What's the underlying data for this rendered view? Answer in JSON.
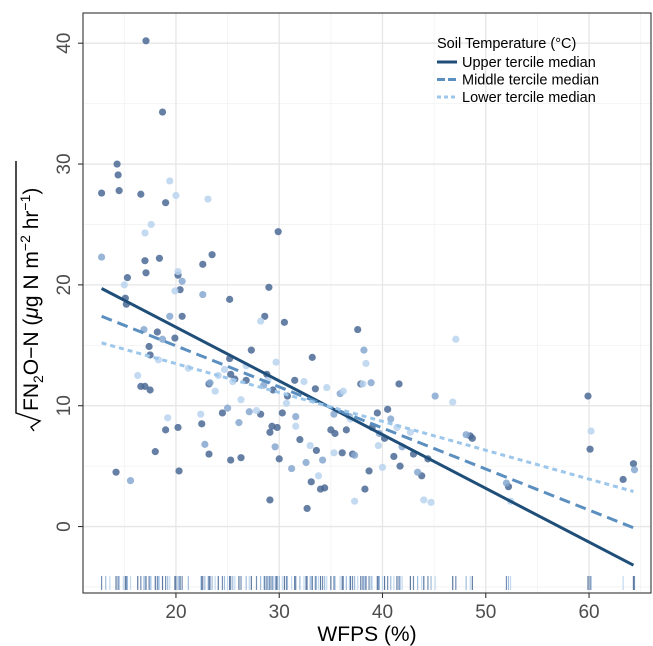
{
  "chart_data": {
    "type": "scatter",
    "xlabel": "WFPS (%)",
    "ylabel_parts": {
      "base": "FN",
      "sub": "2",
      "mid": "O−N (",
      "mu": "μ",
      "unit_a": "g N m",
      "sup_a": "−2",
      "unit_b": " hr",
      "sup_b": "−1",
      "close": ")"
    },
    "xlim": [
      11,
      66
    ],
    "ylim": [
      -5.5,
      42.5
    ],
    "x_ticks": [
      20,
      30,
      40,
      50,
      60
    ],
    "y_ticks": [
      0,
      10,
      20,
      30,
      40
    ],
    "grid": true,
    "legend": {
      "title": "Soil Temperature (°C)",
      "placement": "top-right",
      "entries": [
        {
          "label": "Upper tercile median",
          "color": "#1f4e79",
          "dash": "solid"
        },
        {
          "label": "Middle tercile median",
          "color": "#5b8fc0",
          "dash": "dashed"
        },
        {
          "label": "Lower tercile median",
          "color": "#9cc6ea",
          "dash": "dotted"
        }
      ]
    },
    "lines": [
      {
        "name": "Upper tercile median",
        "x": [
          12.8,
          64.3
        ],
        "y": [
          19.7,
          -3.2
        ]
      },
      {
        "name": "Middle tercile median",
        "x": [
          12.8,
          64.3
        ],
        "y": [
          17.4,
          -0.1
        ]
      },
      {
        "name": "Lower tercile median",
        "x": [
          12.8,
          64.3
        ],
        "y": [
          15.2,
          2.9
        ]
      }
    ],
    "series": [
      {
        "group": "upper",
        "color": "#4b6a95",
        "points": [
          [
            17.1,
            40.2
          ],
          [
            18.7,
            34.3
          ],
          [
            14.3,
            30.0
          ],
          [
            14.4,
            29.1
          ],
          [
            14.5,
            27.8
          ],
          [
            12.8,
            27.6
          ],
          [
            16.6,
            27.5
          ],
          [
            19.0,
            26.8
          ],
          [
            29.9,
            24.4
          ],
          [
            15.3,
            20.6
          ],
          [
            17.0,
            22.0
          ],
          [
            17.1,
            21.0
          ],
          [
            18.4,
            22.2
          ],
          [
            20.2,
            20.8
          ],
          [
            23.5,
            22.5
          ],
          [
            22.6,
            21.7
          ],
          [
            20.6,
            17.4
          ],
          [
            20.4,
            19.6
          ],
          [
            18.2,
            16.1
          ],
          [
            17.4,
            14.9
          ],
          [
            17.5,
            14.2
          ],
          [
            17.0,
            11.6
          ],
          [
            16.6,
            11.6
          ],
          [
            17.5,
            11.3
          ],
          [
            18.0,
            6.2
          ],
          [
            19.0,
            8.0
          ],
          [
            20.2,
            8.2
          ],
          [
            19.9,
            15.6
          ],
          [
            15.1,
            18.9
          ],
          [
            15.2,
            18.4
          ],
          [
            14.2,
            4.5
          ],
          [
            20.3,
            4.6
          ],
          [
            22.5,
            8.5
          ],
          [
            23.2,
            11.8
          ],
          [
            24.5,
            9.4
          ],
          [
            25.2,
            13.9
          ],
          [
            25.3,
            12.6
          ],
          [
            25.7,
            12.2
          ],
          [
            25.3,
            5.5
          ],
          [
            23.2,
            6.0
          ],
          [
            26.3,
            5.7
          ],
          [
            26.8,
            12.1
          ],
          [
            27.3,
            14.6
          ],
          [
            28.2,
            9.3
          ],
          [
            28.8,
            12.6
          ],
          [
            29.0,
            19.8
          ],
          [
            29.1,
            7.8
          ],
          [
            29.3,
            8.3
          ],
          [
            29.4,
            11.3
          ],
          [
            29.8,
            8.2
          ],
          [
            30.0,
            5.6
          ],
          [
            30.3,
            9.4
          ],
          [
            30.8,
            10.8
          ],
          [
            31.5,
            12.1
          ],
          [
            32.0,
            7.2
          ],
          [
            32.7,
            1.5
          ],
          [
            33.1,
            3.7
          ],
          [
            33.2,
            14.0
          ],
          [
            33.5,
            11.4
          ],
          [
            33.6,
            6.3
          ],
          [
            34.0,
            3.1
          ],
          [
            35.0,
            8.0
          ],
          [
            35.4,
            7.7
          ],
          [
            36.1,
            6.1
          ],
          [
            36.5,
            8.0
          ],
          [
            37.6,
            16.3
          ],
          [
            37.9,
            11.8
          ],
          [
            38.3,
            3.1
          ],
          [
            38.7,
            4.6
          ],
          [
            39.0,
            8.2
          ],
          [
            39.5,
            9.4
          ],
          [
            40.2,
            7.3
          ],
          [
            40.5,
            9.7
          ],
          [
            41.1,
            5.8
          ],
          [
            41.6,
            11.8
          ],
          [
            41.7,
            5.0
          ],
          [
            43.0,
            6.0
          ],
          [
            43.8,
            4.2
          ],
          [
            44.4,
            5.6
          ],
          [
            48.5,
            7.5
          ],
          [
            48.7,
            7.3
          ],
          [
            52.2,
            3.3
          ],
          [
            59.9,
            10.8
          ],
          [
            60.1,
            6.4
          ],
          [
            63.3,
            3.9
          ],
          [
            64.3,
            5.2
          ],
          [
            29.1,
            2.2
          ],
          [
            34.4,
            3.2
          ],
          [
            37.1,
            6.0
          ],
          [
            25.2,
            18.8
          ],
          [
            28.6,
            17.4
          ],
          [
            30.5,
            16.9
          ]
        ]
      },
      {
        "group": "middle",
        "color": "#86a7cf",
        "points": [
          [
            12.8,
            22.3
          ],
          [
            15.6,
            3.8
          ],
          [
            16.9,
            16.3
          ],
          [
            18.7,
            15.5
          ],
          [
            19.4,
            17.4
          ],
          [
            20.6,
            20.3
          ],
          [
            22.8,
            6.8
          ],
          [
            22.6,
            19.2
          ],
          [
            23.3,
            11.9
          ],
          [
            25.0,
            9.8
          ],
          [
            26.1,
            8.6
          ],
          [
            27.1,
            9.5
          ],
          [
            28.5,
            11.7
          ],
          [
            29.6,
            6.6
          ],
          [
            31.2,
            4.8
          ],
          [
            31.6,
            9.1
          ],
          [
            32.6,
            5.3
          ],
          [
            34.2,
            5.5
          ],
          [
            35.3,
            9.3
          ],
          [
            35.9,
            11.0
          ],
          [
            36.8,
            9.1
          ],
          [
            37.3,
            5.9
          ],
          [
            38.2,
            14.6
          ],
          [
            38.9,
            11.9
          ],
          [
            39.7,
            7.7
          ],
          [
            40.8,
            8.9
          ],
          [
            41.9,
            6.6
          ],
          [
            43.4,
            4.5
          ],
          [
            45.1,
            10.8
          ],
          [
            48.1,
            7.6
          ],
          [
            52.0,
            3.6
          ],
          [
            64.4,
            4.7
          ]
        ]
      },
      {
        "group": "lower",
        "color": "#b9d4ef",
        "points": [
          [
            15.0,
            20.0
          ],
          [
            17.0,
            24.3
          ],
          [
            17.6,
            25.0
          ],
          [
            19.4,
            28.6
          ],
          [
            20.0,
            27.4
          ],
          [
            20.2,
            21.1
          ],
          [
            23.1,
            27.1
          ],
          [
            19.9,
            19.5
          ],
          [
            21.2,
            13.1
          ],
          [
            16.3,
            12.5
          ],
          [
            19.2,
            9.0
          ],
          [
            22.4,
            9.3
          ],
          [
            23.8,
            11.2
          ],
          [
            24.7,
            13.0
          ],
          [
            25.5,
            12.0
          ],
          [
            26.3,
            10.5
          ],
          [
            27.8,
            9.6
          ],
          [
            28.2,
            17.0
          ],
          [
            28.9,
            12.1
          ],
          [
            29.7,
            13.6
          ],
          [
            30.7,
            10.2
          ],
          [
            31.6,
            8.3
          ],
          [
            32.4,
            12.0
          ],
          [
            33.0,
            6.7
          ],
          [
            33.8,
            4.2
          ],
          [
            34.6,
            11.5
          ],
          [
            35.3,
            6.1
          ],
          [
            36.2,
            11.2
          ],
          [
            36.9,
            8.9
          ],
          [
            37.3,
            2.1
          ],
          [
            38.1,
            11.8
          ],
          [
            38.4,
            13.5
          ],
          [
            39.6,
            6.7
          ],
          [
            40.0,
            4.9
          ],
          [
            41.4,
            8.2
          ],
          [
            42.7,
            7.8
          ],
          [
            44.0,
            2.2
          ],
          [
            44.7,
            2.0
          ],
          [
            46.8,
            10.3
          ],
          [
            47.1,
            15.5
          ],
          [
            52.4,
            2.1
          ],
          [
            60.2,
            7.9
          ],
          [
            26.8,
            13.3
          ],
          [
            24.1,
            12.5
          ],
          [
            18.3,
            13.8
          ]
        ]
      }
    ],
    "rug_x": [
      12.8,
      13.2,
      13.6,
      14.2,
      14.4,
      14.5,
      14.9,
      15.1,
      15.2,
      15.3,
      15.6,
      16.3,
      16.6,
      16.9,
      17.0,
      17.1,
      17.4,
      17.5,
      17.6,
      18.0,
      18.2,
      18.3,
      18.4,
      18.7,
      19.0,
      19.2,
      19.4,
      19.9,
      20.0,
      20.2,
      20.3,
      20.4,
      20.6,
      21.2,
      22.4,
      22.5,
      22.6,
      22.8,
      23.1,
      23.2,
      23.3,
      23.5,
      23.8,
      24.1,
      24.5,
      24.7,
      25.0,
      25.2,
      25.3,
      25.5,
      25.7,
      26.1,
      26.3,
      26.8,
      27.1,
      27.3,
      27.8,
      28.2,
      28.5,
      28.6,
      28.8,
      28.9,
      29.0,
      29.1,
      29.3,
      29.4,
      29.6,
      29.7,
      29.8,
      30.0,
      30.3,
      30.5,
      30.7,
      30.8,
      31.2,
      31.5,
      31.6,
      32.0,
      32.4,
      32.6,
      32.7,
      33.0,
      33.1,
      33.2,
      33.5,
      33.6,
      33.8,
      34.0,
      34.2,
      34.4,
      34.6,
      35.0,
      35.3,
      35.4,
      35.9,
      36.1,
      36.2,
      36.5,
      36.8,
      36.9,
      37.1,
      37.3,
      37.6,
      37.9,
      38.1,
      38.2,
      38.3,
      38.4,
      38.7,
      38.9,
      39.0,
      39.5,
      39.6,
      39.7,
      40.0,
      40.2,
      40.5,
      40.8,
      41.1,
      41.4,
      41.6,
      41.7,
      41.9,
      42.7,
      43.0,
      43.4,
      43.8,
      44.0,
      44.4,
      44.7,
      45.1,
      46.8,
      47.1,
      48.1,
      48.5,
      48.7,
      52.0,
      52.2,
      52.4,
      59.9,
      60.1,
      60.2,
      63.3,
      64.3,
      64.4
    ]
  }
}
